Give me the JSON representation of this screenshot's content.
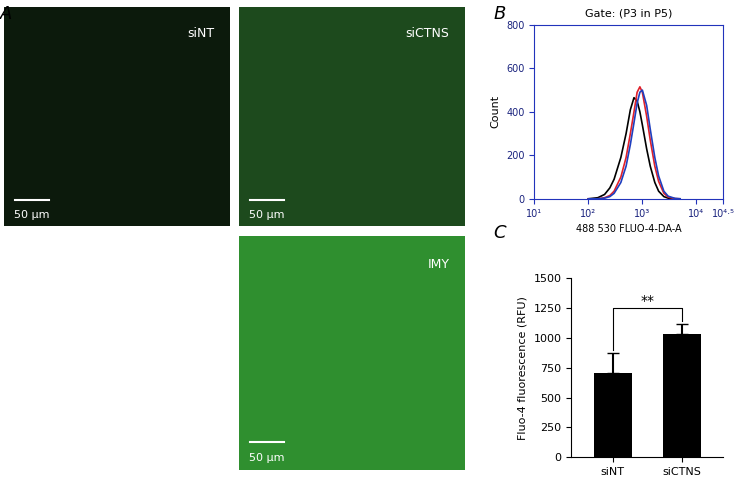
{
  "chart_data": [
    {
      "type": "image",
      "panel": "A",
      "panels": [
        {
          "label": "siNT",
          "scale_bar": "50 µm"
        },
        {
          "label": "siCTNS",
          "scale_bar": "50 µm"
        },
        {
          "label": "IMY",
          "scale_bar": "50 µm"
        }
      ]
    },
    {
      "type": "line",
      "panel": "B",
      "title": "Gate: (P3 in P5)",
      "x_label": "488 530 FLUO-4-DA-A",
      "y_label": "Count",
      "log": "x",
      "grid": false,
      "x": [
        100,
        150,
        200,
        250,
        300,
        400,
        500,
        600,
        700,
        800,
        900,
        1000,
        1200,
        1400,
        1700,
        2000,
        2500,
        3000,
        4000,
        5000
      ],
      "series": [
        {
          "color": "#000000",
          "values": [
            0,
            5,
            20,
            50,
            90,
            190,
            300,
            410,
            465,
            450,
            400,
            340,
            230,
            150,
            75,
            35,
            10,
            3,
            0,
            0
          ]
        },
        {
          "color": "#e0202a",
          "values": [
            0,
            0,
            5,
            15,
            35,
            100,
            190,
            300,
            400,
            490,
            515,
            490,
            380,
            270,
            150,
            80,
            25,
            8,
            1,
            0
          ]
        },
        {
          "color": "#1f3fbf",
          "values": [
            0,
            0,
            3,
            10,
            25,
            75,
            150,
            250,
            350,
            440,
            490,
            500,
            430,
            320,
            190,
            105,
            35,
            12,
            2,
            0
          ]
        }
      ],
      "xlim": [
        10,
        31622.78
      ],
      "xticks": [
        {
          "value": 10,
          "label": "10¹"
        },
        {
          "value": 100,
          "label": "10²"
        },
        {
          "value": 1000,
          "label": "10³"
        },
        {
          "value": 10000,
          "label": "10⁴"
        },
        {
          "value": 31622.78,
          "label": "10⁴·⁵"
        }
      ],
      "ylim": [
        0,
        800
      ],
      "yticks": [
        0,
        200,
        400,
        600,
        800
      ]
    },
    {
      "type": "bar",
      "panel": "C",
      "y_label": "Fluo-4 fluorescence (RFU)",
      "categories": [
        "siNT",
        "siCTNS"
      ],
      "values": [
        710,
        1035
      ],
      "errors": [
        160,
        80
      ],
      "color": "#000000",
      "grid": false,
      "ylim": [
        0,
        1500
      ],
      "yticks": [
        0,
        250,
        500,
        750,
        1000,
        1250,
        1500
      ],
      "annotations": [
        {
          "text": "**",
          "x": [
            0,
            1
          ],
          "y": 1250
        }
      ]
    }
  ]
}
